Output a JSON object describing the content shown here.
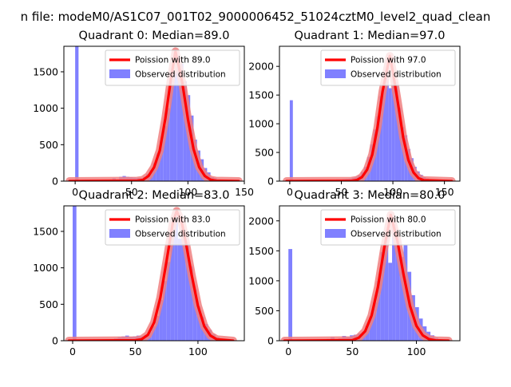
{
  "figure": {
    "suptitle": "n file: modeM0/AS1C07_001T02_9000006452_51024cztM0_level2_quad_clean"
  },
  "colors": {
    "histogram": "#8080ff",
    "poisson_line": "#ff0000",
    "poisson_glow": "#f08080",
    "axes": "#000000",
    "legend_border": "#cccccc"
  },
  "chart_data": [
    {
      "type": "bar",
      "title": "Quadrant 0: Median=89.0",
      "median": 89.0,
      "xlabel": "",
      "ylabel": "",
      "xlim": [
        -10,
        150
      ],
      "ylim": [
        0,
        1850
      ],
      "xticks": [
        0,
        50,
        100,
        150
      ],
      "yticks": [
        0,
        500,
        1000,
        1500
      ],
      "legend": {
        "location": "upper right",
        "entries": [
          "Poission with 89.0",
          "Observed distribution"
        ]
      },
      "bin_width": 3,
      "histogram": {
        "name": "Observed distribution",
        "x": [
          0,
          33,
          36,
          39,
          42,
          45,
          48,
          51,
          54,
          57,
          60,
          63,
          66,
          69,
          72,
          75,
          78,
          81,
          84,
          87,
          90,
          93,
          96,
          99,
          102,
          105,
          108,
          111,
          114,
          117,
          120,
          123,
          126,
          129,
          132,
          135
        ],
        "values": [
          1850,
          40,
          20,
          60,
          70,
          60,
          55,
          50,
          45,
          40,
          60,
          100,
          150,
          250,
          380,
          560,
          760,
          1000,
          1380,
          1490,
          1720,
          1610,
          1370,
          1180,
          900,
          570,
          420,
          300,
          180,
          120,
          55,
          40,
          25,
          15,
          10,
          5
        ]
      },
      "poisson": {
        "name": "Poission with 89.0",
        "x": [
          -5,
          55,
          60,
          65,
          70,
          75,
          80,
          85,
          89,
          95,
          100,
          105,
          110,
          115,
          120,
          125,
          145
        ],
        "values": [
          0,
          5,
          16,
          70,
          190,
          420,
          860,
          1410,
          1780,
          1350,
          850,
          440,
          190,
          70,
          20,
          5,
          0
        ]
      }
    },
    {
      "type": "bar",
      "title": "Quadrant 1: Median=97.0",
      "median": 97.0,
      "xlabel": "",
      "ylabel": "",
      "xlim": [
        -10,
        165
      ],
      "ylim": [
        0,
        2350
      ],
      "xticks": [
        0,
        50,
        100,
        150
      ],
      "yticks": [
        0,
        500,
        1000,
        1500,
        2000
      ],
      "legend": {
        "location": "upper right",
        "entries": [
          "Poission with 97.0",
          "Observed distribution"
        ]
      },
      "bin_width": 3,
      "histogram": {
        "name": "Observed distribution",
        "x": [
          0,
          42,
          45,
          48,
          51,
          54,
          57,
          60,
          63,
          66,
          69,
          72,
          75,
          78,
          81,
          84,
          87,
          90,
          93,
          96,
          99,
          102,
          105,
          108,
          111,
          114,
          117,
          120,
          123,
          126,
          129,
          132,
          135,
          138,
          141,
          144
        ],
        "values": [
          1410,
          20,
          30,
          30,
          35,
          40,
          45,
          60,
          75,
          100,
          160,
          250,
          420,
          640,
          900,
          1130,
          1480,
          1720,
          1850,
          1620,
          1900,
          1720,
          1280,
          940,
          800,
          560,
          400,
          250,
          170,
          110,
          70,
          45,
          30,
          20,
          10,
          5
        ]
      },
      "poisson": {
        "name": "Poission with 97.0",
        "x": [
          -3,
          60,
          65,
          70,
          75,
          80,
          85,
          90,
          97,
          100,
          105,
          110,
          115,
          120,
          125,
          130,
          157
        ],
        "values": [
          0,
          5,
          20,
          70,
          200,
          460,
          930,
          1560,
          2180,
          1900,
          1350,
          760,
          370,
          150,
          50,
          15,
          0
        ]
      }
    },
    {
      "type": "bar",
      "title": "Quadrant 2: Median=83.0",
      "median": 83.0,
      "xlabel": "",
      "ylabel": "",
      "xlim": [
        -7,
        137
      ],
      "ylim": [
        0,
        1850
      ],
      "xticks": [
        0,
        50,
        100
      ],
      "yticks": [
        0,
        500,
        1000,
        1500
      ],
      "legend": {
        "location": "upper right",
        "entries": [
          "Poission with 83.0",
          "Observed distribution"
        ]
      },
      "bin_width": 3,
      "histogram": {
        "name": "Observed distribution",
        "x": [
          0,
          33,
          36,
          39,
          42,
          45,
          48,
          51,
          54,
          57,
          60,
          63,
          66,
          69,
          72,
          75,
          78,
          81,
          84,
          87,
          90,
          93,
          96,
          99,
          102,
          105,
          108,
          111,
          114,
          117,
          120,
          123
        ],
        "values": [
          1850,
          30,
          50,
          60,
          70,
          55,
          60,
          70,
          60,
          80,
          120,
          200,
          340,
          560,
          820,
          1080,
          1450,
          1720,
          1400,
          1500,
          1350,
          1020,
          700,
          470,
          330,
          230,
          150,
          90,
          50,
          25,
          10,
          5
        ]
      },
      "poisson": {
        "name": "Poission with 83.0",
        "x": [
          -3,
          50,
          55,
          60,
          65,
          70,
          75,
          80,
          83,
          87,
          90,
          95,
          100,
          105,
          110,
          115,
          128
        ],
        "values": [
          0,
          5,
          20,
          80,
          250,
          590,
          1100,
          1620,
          1780,
          1630,
          1380,
          900,
          480,
          200,
          70,
          20,
          0
        ]
      }
    },
    {
      "type": "bar",
      "title": "Quadrant 3: Median=80.0",
      "median": 80.0,
      "xlabel": "",
      "ylabel": "",
      "xlim": [
        -7,
        134
      ],
      "ylim": [
        0,
        2250
      ],
      "xticks": [
        0,
        50,
        100
      ],
      "yticks": [
        0,
        500,
        1000,
        1500,
        2000
      ],
      "legend": {
        "location": "upper right",
        "entries": [
          "Poission with 80.0",
          "Observed distribution"
        ]
      },
      "bin_width": 3,
      "histogram": {
        "name": "Observed distribution",
        "x": [
          0,
          30,
          33,
          36,
          39,
          42,
          45,
          48,
          51,
          54,
          57,
          60,
          63,
          66,
          69,
          72,
          75,
          78,
          81,
          84,
          87,
          90,
          93,
          96,
          99,
          102,
          105,
          108,
          111,
          114,
          117,
          120
        ],
        "values": [
          1530,
          30,
          60,
          20,
          40,
          80,
          60,
          90,
          100,
          120,
          140,
          250,
          400,
          640,
          1000,
          1480,
          1750,
          1300,
          1950,
          1600,
          1400,
          1600,
          1150,
          760,
          560,
          370,
          240,
          150,
          90,
          50,
          25,
          10
        ]
      },
      "poisson": {
        "name": "Poission with 80.0",
        "x": [
          -3,
          50,
          55,
          60,
          65,
          70,
          75,
          80,
          85,
          90,
          95,
          100,
          105,
          110,
          115,
          125
        ],
        "values": [
          0,
          8,
          50,
          160,
          420,
          900,
          1560,
          2100,
          1680,
          1100,
          580,
          250,
          90,
          25,
          5,
          0
        ]
      }
    }
  ]
}
